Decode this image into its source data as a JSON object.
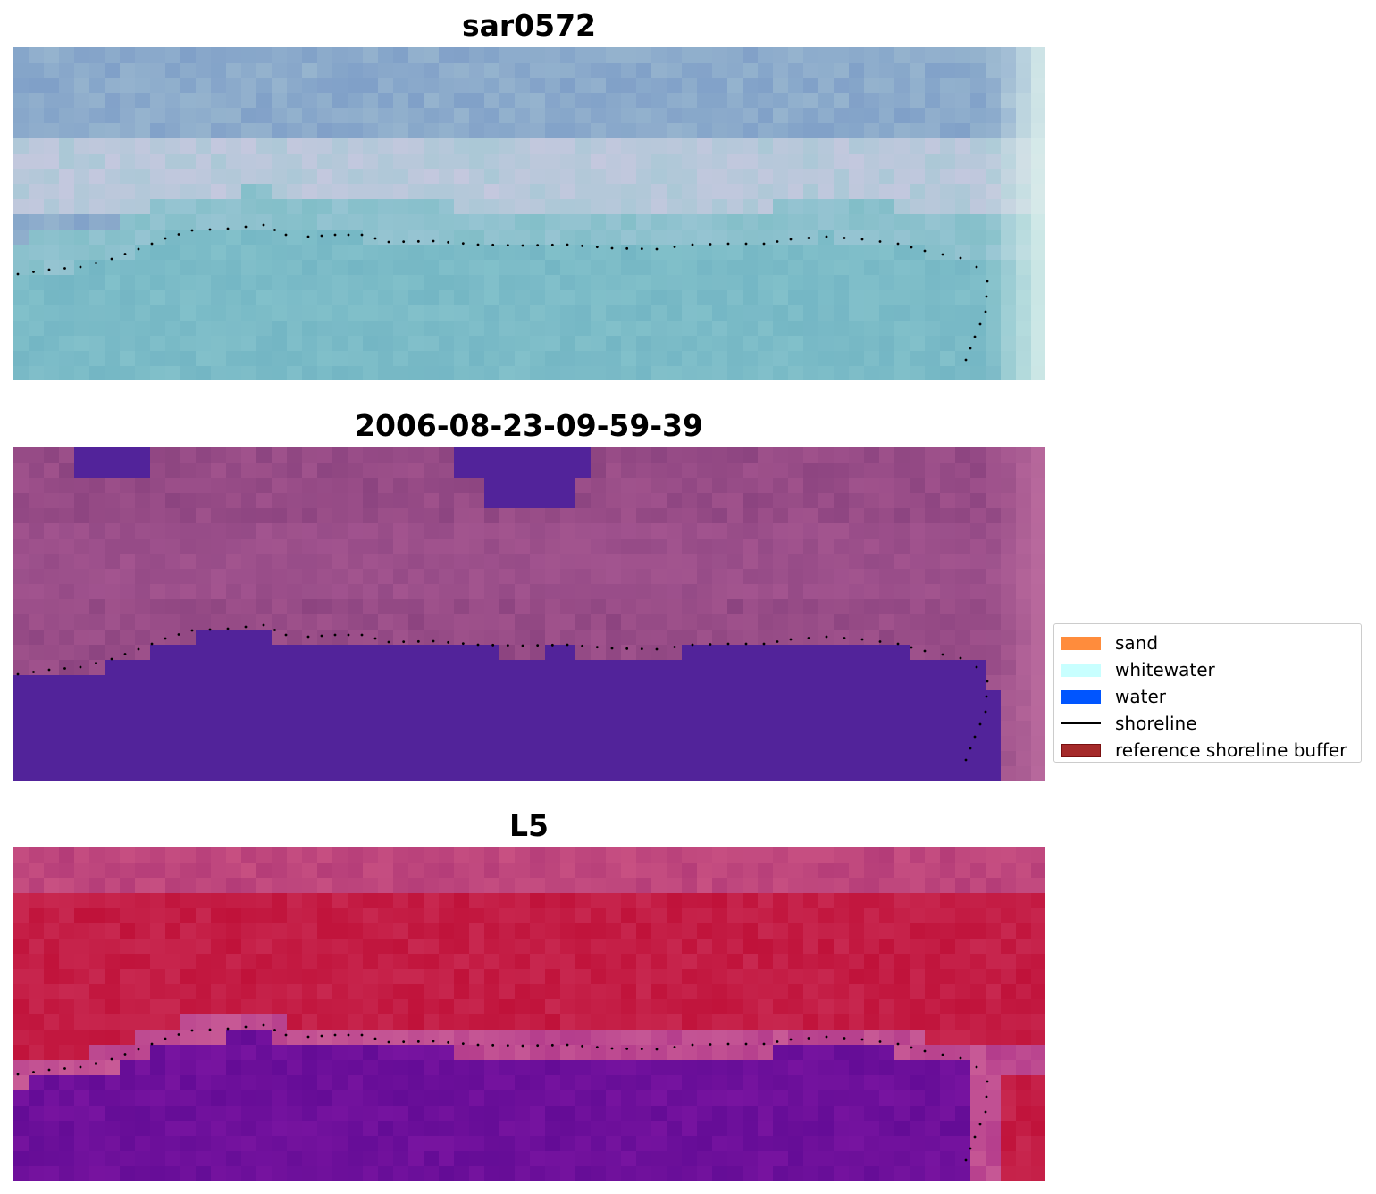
{
  "panels": [
    {
      "title": "sar0572",
      "style": "rgb"
    },
    {
      "title": "2006-08-23-09-59-39",
      "style": "classified"
    },
    {
      "title": "L5",
      "style": "index"
    }
  ],
  "legend": {
    "items": [
      {
        "label": "sand",
        "kind": "patch",
        "color": "#ff8c3c"
      },
      {
        "label": "whitewater",
        "kind": "patch",
        "color": "#c8ffff"
      },
      {
        "label": "water",
        "kind": "patch",
        "color": "#0055ff"
      },
      {
        "label": "shoreline",
        "kind": "line",
        "color": "#000000"
      },
      {
        "label": "reference shoreline buffer",
        "kind": "patch",
        "color": "#a52a2a",
        "edge": "#7a1010"
      }
    ]
  },
  "colors": {
    "rgb_water": "#7ab8c4",
    "rgb_land": "#8aa6c8",
    "classified_water": "#52239a",
    "classified_land": "#904c8a",
    "index_land": "#c0103a",
    "index_water": "#6a0e96",
    "shoreline_dots": "#000000"
  }
}
